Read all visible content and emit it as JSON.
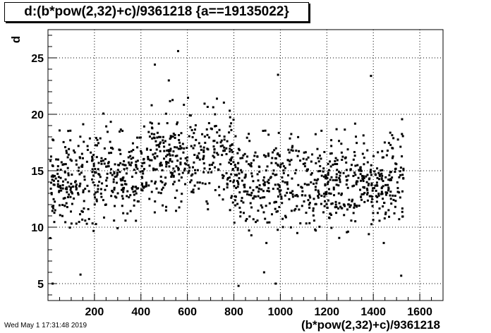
{
  "chart_data": {
    "type": "scatter",
    "title": "d:(b*pow(2,32)+c)/9361218 {a==19135022}",
    "xlabel": "(b*pow(2,32)+c)/9361218",
    "ylabel": "d",
    "timestamp": "Wed May  1 17:31:48 2019",
    "xlim": [
      0,
      1700
    ],
    "ylim": [
      3.5,
      27.5
    ],
    "xticks": [
      200,
      400,
      600,
      800,
      1000,
      1200,
      1400,
      1600
    ],
    "yticks": [
      5,
      10,
      15,
      20,
      25
    ],
    "grid": true,
    "point_color": "#000000",
    "points_generation": {
      "count": 1350,
      "x_range": [
        8,
        1530
      ],
      "y_center": 14.0,
      "y_spread_sd": 2.8,
      "y_min": 4.6,
      "y_max": 25.7
    },
    "notable_points": [
      [
        560,
        25.6
      ],
      [
        460,
        24.4
      ],
      [
        520,
        23.0
      ],
      [
        990,
        23.5
      ],
      [
        1390,
        23.4
      ],
      [
        820,
        4.8
      ],
      [
        20,
        5.0
      ],
      [
        1520,
        5.7
      ],
      [
        980,
        5.0
      ],
      [
        140,
        5.8
      ],
      [
        930,
        6.0
      ]
    ]
  }
}
